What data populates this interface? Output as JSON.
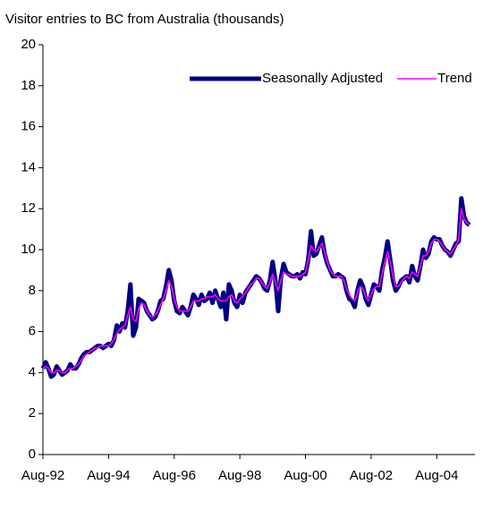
{
  "chart_data": {
    "type": "line",
    "title": "Visitor entries to BC from Australia (thousands)",
    "categories": [
      "Aug-92",
      null,
      null,
      null,
      null,
      null,
      null,
      null,
      null,
      null,
      null,
      null,
      null,
      null,
      null,
      null,
      null,
      null,
      null,
      null,
      null,
      null,
      null,
      null,
      "Aug-94",
      null,
      null,
      null,
      null,
      null,
      null,
      null,
      null,
      null,
      null,
      null,
      null,
      null,
      null,
      null,
      null,
      null,
      null,
      null,
      null,
      null,
      null,
      null,
      "Aug-96",
      null,
      null,
      null,
      null,
      null,
      null,
      null,
      null,
      null,
      null,
      null,
      null,
      null,
      null,
      null,
      null,
      null,
      null,
      null,
      null,
      null,
      null,
      null,
      "Aug-98",
      null,
      null,
      null,
      null,
      null,
      null,
      null,
      null,
      null,
      null,
      null,
      null,
      null,
      null,
      null,
      null,
      null,
      null,
      null,
      null,
      null,
      null,
      null,
      "Aug-00",
      null,
      null,
      null,
      null,
      null,
      null,
      null,
      null,
      null,
      null,
      null,
      null,
      null,
      null,
      null,
      null,
      null,
      null,
      null,
      null,
      null,
      null,
      null,
      "Aug-02",
      null,
      null,
      null,
      null,
      null,
      null,
      null,
      null,
      null,
      null,
      null,
      null,
      null,
      null,
      null,
      null,
      null,
      null,
      null,
      null,
      null,
      null,
      null,
      "Aug-04",
      null,
      null,
      null,
      null,
      null,
      null,
      null,
      null,
      null,
      null,
      null,
      null
    ],
    "series": [
      {
        "name": "Seasonally Adjusted",
        "color": "#000080",
        "width": 5,
        "values": [
          4.2,
          4.5,
          4.2,
          3.8,
          3.9,
          4.3,
          4.1,
          3.9,
          4.0,
          4.1,
          4.4,
          4.2,
          4.2,
          4.4,
          4.7,
          4.9,
          5.0,
          5.0,
          5.1,
          5.2,
          5.3,
          5.3,
          5.2,
          5.3,
          5.4,
          5.3,
          5.6,
          6.3,
          6.0,
          6.4,
          6.2,
          7.0,
          8.3,
          5.8,
          6.2,
          7.6,
          7.5,
          7.4,
          7.0,
          6.8,
          6.6,
          6.7,
          7.0,
          7.5,
          7.6,
          8.2,
          9.0,
          8.5,
          7.5,
          7.0,
          6.9,
          7.2,
          7.0,
          6.8,
          7.2,
          7.8,
          7.6,
          7.3,
          7.8,
          7.5,
          7.6,
          7.9,
          7.4,
          8.0,
          7.6,
          7.2,
          7.9,
          6.6,
          8.3,
          8.0,
          7.4,
          7.2,
          7.8,
          7.4,
          7.9,
          8.1,
          8.3,
          8.5,
          8.7,
          8.6,
          8.4,
          8.1,
          8.0,
          8.5,
          9.4,
          8.5,
          7.0,
          8.6,
          9.3,
          8.9,
          8.8,
          8.7,
          8.7,
          8.8,
          8.6,
          8.9,
          8.8,
          9.5,
          10.9,
          9.7,
          9.8,
          10.2,
          10.6,
          9.8,
          9.3,
          9.0,
          8.7,
          8.7,
          8.8,
          8.7,
          8.6,
          8.0,
          7.6,
          7.5,
          7.2,
          8.0,
          8.5,
          8.2,
          7.6,
          7.3,
          7.8,
          8.3,
          8.2,
          8.0,
          9.0,
          9.6,
          10.4,
          9.5,
          8.5,
          8.0,
          8.2,
          8.5,
          8.6,
          8.7,
          8.4,
          9.2,
          8.7,
          8.5,
          9.2,
          10.0,
          9.6,
          9.8,
          10.4,
          10.6,
          10.5,
          10.5,
          10.2,
          10.0,
          9.9,
          9.7,
          10.0,
          10.3,
          10.4,
          12.5,
          11.6,
          11.3,
          11.2
        ]
      },
      {
        "name": "Trend",
        "color": "#ff00ff",
        "width": 1.6,
        "values": [
          4.2,
          4.3,
          4.2,
          4.0,
          4.0,
          4.1,
          4.1,
          4.0,
          4.0,
          4.1,
          4.2,
          4.2,
          4.3,
          4.4,
          4.6,
          4.8,
          4.9,
          5.0,
          5.1,
          5.2,
          5.2,
          5.3,
          5.3,
          5.3,
          5.3,
          5.4,
          5.6,
          5.9,
          6.1,
          6.2,
          6.3,
          6.8,
          7.2,
          6.6,
          6.5,
          7.1,
          7.4,
          7.3,
          7.0,
          6.8,
          6.7,
          6.8,
          7.0,
          7.3,
          7.6,
          8.0,
          8.5,
          8.2,
          7.6,
          7.2,
          7.0,
          7.0,
          7.0,
          7.0,
          7.2,
          7.5,
          7.5,
          7.5,
          7.6,
          7.6,
          7.7,
          7.7,
          7.7,
          7.8,
          7.6,
          7.5,
          7.5,
          7.5,
          7.7,
          7.8,
          7.5,
          7.4,
          7.6,
          7.7,
          7.9,
          8.1,
          8.3,
          8.4,
          8.6,
          8.6,
          8.4,
          8.2,
          8.1,
          8.4,
          8.8,
          8.4,
          8.0,
          8.5,
          8.9,
          8.8,
          8.8,
          8.7,
          8.7,
          8.7,
          8.7,
          8.8,
          8.9,
          9.5,
          10.2,
          10.0,
          9.9,
          10.1,
          10.3,
          9.9,
          9.4,
          9.0,
          8.8,
          8.7,
          8.7,
          8.7,
          8.5,
          8.1,
          7.8,
          7.6,
          7.5,
          7.9,
          8.2,
          8.1,
          7.7,
          7.5,
          7.8,
          8.1,
          8.2,
          8.2,
          8.8,
          9.4,
          9.9,
          9.4,
          8.7,
          8.2,
          8.2,
          8.4,
          8.6,
          8.7,
          8.6,
          8.9,
          8.8,
          8.7,
          9.2,
          9.7,
          9.7,
          9.9,
          10.3,
          10.5,
          10.5,
          10.4,
          10.2,
          10.0,
          9.9,
          9.8,
          10.0,
          10.2,
          10.5,
          12.0,
          11.5,
          11.3,
          11.2
        ]
      }
    ],
    "ylim": [
      0,
      20
    ],
    "yticks": [
      0,
      2,
      4,
      6,
      8,
      10,
      12,
      14,
      16,
      18,
      20
    ],
    "grid": false,
    "legend": "top-right"
  }
}
